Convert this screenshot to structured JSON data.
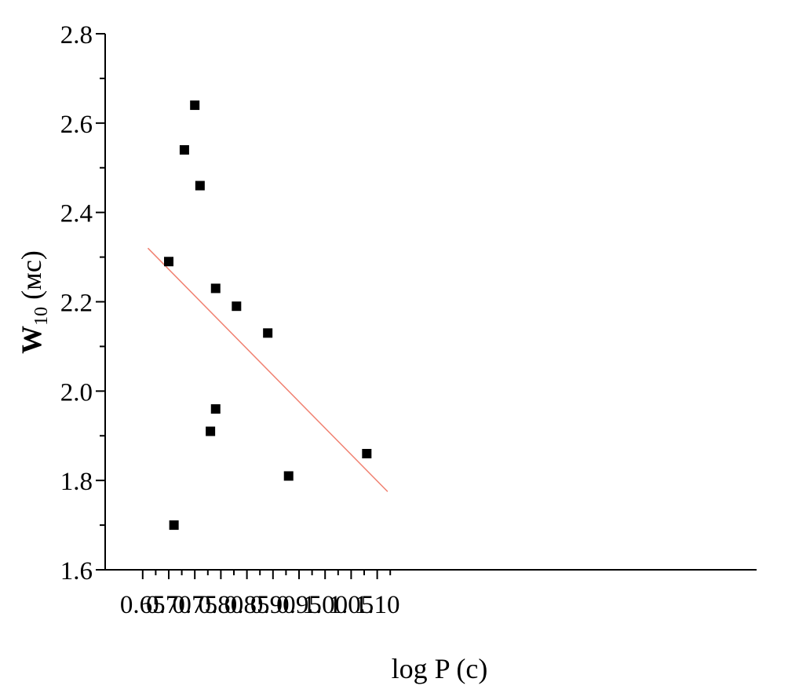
{
  "chart_data": {
    "type": "scatter",
    "title": "",
    "xlabel": "log P (c)",
    "ylabel_main": "W",
    "ylabel_sub": "10",
    "ylabel_unit": " (мс)",
    "xlim": [
      0.65,
      1.125
    ],
    "ylim": [
      1.6,
      2.8
    ],
    "x_ticks": [
      0.65,
      0.7,
      0.75,
      0.8,
      0.85,
      0.9,
      0.95,
      1.0,
      1.05,
      1.1
    ],
    "x_tick_labels": [
      "0.65",
      "0.70",
      "0.75",
      "0.80",
      "0.85",
      "0.90",
      "0.95",
      "1.00",
      "1.05",
      "1.10"
    ],
    "y_ticks": [
      1.6,
      1.8,
      2.0,
      2.2,
      2.4,
      2.6,
      2.8
    ],
    "y_tick_labels": [
      "1.6",
      "1.8",
      "2.0",
      "2.2",
      "2.4",
      "2.6",
      "2.8"
    ],
    "grid": false,
    "legend": "none",
    "points": [
      {
        "x": 0.7,
        "y": 2.29
      },
      {
        "x": 0.71,
        "y": 1.7
      },
      {
        "x": 0.73,
        "y": 2.54
      },
      {
        "x": 0.75,
        "y": 2.64
      },
      {
        "x": 0.76,
        "y": 2.46
      },
      {
        "x": 0.78,
        "y": 1.91
      },
      {
        "x": 0.79,
        "y": 2.23
      },
      {
        "x": 0.79,
        "y": 1.96
      },
      {
        "x": 0.83,
        "y": 2.19
      },
      {
        "x": 0.89,
        "y": 2.13
      },
      {
        "x": 0.93,
        "y": 1.81
      },
      {
        "x": 1.08,
        "y": 1.86
      }
    ],
    "fit_line": {
      "x": [
        0.66,
        1.12
      ],
      "y": [
        2.32,
        1.775
      ]
    },
    "colors": {
      "points": "#000000",
      "fit_line": "#f08070",
      "axes": "#000000"
    }
  }
}
